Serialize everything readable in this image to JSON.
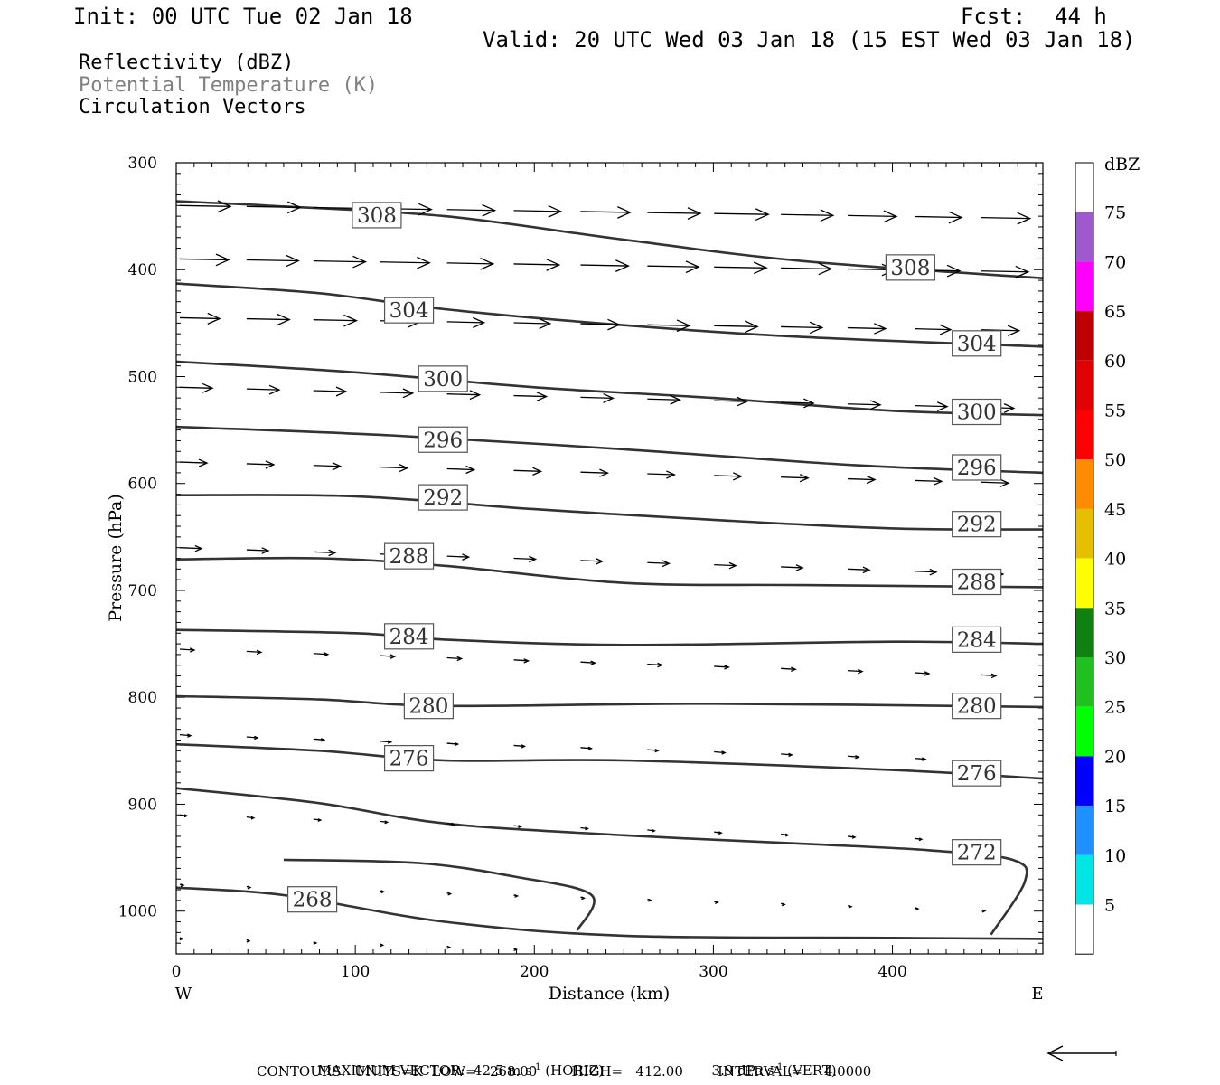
{
  "header": {
    "init": "Init: 00 UTC Tue 02 Jan 18",
    "fcst_label": "Fcst:",
    "fcst_value": "44 h",
    "valid": "Valid: 20 UTC Wed 03 Jan 18 (15 EST Wed 03 Jan 18)"
  },
  "fields": [
    {
      "text": "Reflectivity (dBZ)",
      "color": "#000000"
    },
    {
      "text": "Potential Temperature (K)",
      "color": "#808080"
    },
    {
      "text": "Circulation Vectors",
      "color": "#000000"
    }
  ],
  "chart_data": {
    "type": "cross-section",
    "xlabel": "Distance (km)",
    "ylabel": "Pressure (hPa)",
    "xlim": [
      0,
      484
    ],
    "ylim": [
      1040,
      300
    ],
    "x_ticks": [
      0,
      100,
      200,
      300,
      400
    ],
    "y_ticks": [
      300,
      400,
      500,
      600,
      700,
      800,
      900,
      1000
    ],
    "x_end_labels": {
      "left": "W",
      "right": "E"
    },
    "theta_contours": [
      {
        "level": 308,
        "label": "308",
        "points": [
          [
            0,
            336
          ],
          [
            50,
            340
          ],
          [
            150,
            350
          ],
          [
            250,
            372
          ],
          [
            350,
            392
          ],
          [
            484,
            408
          ]
        ],
        "labels_at": [
          [
            112,
            349
          ],
          [
            410,
            398
          ]
        ]
      },
      {
        "level": 304,
        "label": "304",
        "points": [
          [
            0,
            413
          ],
          [
            80,
            422
          ],
          [
            150,
            437
          ],
          [
            250,
            452
          ],
          [
            350,
            463
          ],
          [
            484,
            472
          ]
        ],
        "labels_at": [
          [
            130,
            438
          ],
          [
            447,
            469
          ]
        ]
      },
      {
        "level": 300,
        "label": "300",
        "points": [
          [
            0,
            486
          ],
          [
            100,
            496
          ],
          [
            200,
            510
          ],
          [
            300,
            520
          ],
          [
            400,
            532
          ],
          [
            484,
            536
          ]
        ],
        "labels_at": [
          [
            149,
            502
          ],
          [
            447,
            533
          ]
        ]
      },
      {
        "level": 296,
        "label": "296",
        "points": [
          [
            0,
            547
          ],
          [
            120,
            555
          ],
          [
            250,
            568
          ],
          [
            380,
            583
          ],
          [
            484,
            590
          ]
        ],
        "labels_at": [
          [
            149,
            559
          ],
          [
            447,
            585
          ]
        ]
      },
      {
        "level": 292,
        "label": "292",
        "points": [
          [
            0,
            611
          ],
          [
            100,
            612
          ],
          [
            200,
            624
          ],
          [
            300,
            634
          ],
          [
            400,
            642
          ],
          [
            484,
            643
          ]
        ],
        "labels_at": [
          [
            149,
            613
          ],
          [
            447,
            638
          ]
        ]
      },
      {
        "level": 288,
        "label": "288",
        "points": [
          [
            0,
            671
          ],
          [
            80,
            670
          ],
          [
            150,
            677
          ],
          [
            250,
            693
          ],
          [
            350,
            695
          ],
          [
            484,
            697
          ]
        ],
        "labels_at": [
          [
            130,
            668
          ],
          [
            447,
            692
          ]
        ]
      },
      {
        "level": 284,
        "label": "284",
        "points": [
          [
            0,
            737
          ],
          [
            100,
            740
          ],
          [
            150,
            746
          ],
          [
            250,
            751
          ],
          [
            400,
            748
          ],
          [
            484,
            750
          ]
        ],
        "labels_at": [
          [
            130,
            743
          ],
          [
            447,
            746
          ]
        ]
      },
      {
        "level": 280,
        "label": "280",
        "points": [
          [
            0,
            799
          ],
          [
            80,
            802
          ],
          [
            150,
            808
          ],
          [
            300,
            806
          ],
          [
            484,
            809
          ]
        ],
        "labels_at": [
          [
            141,
            808
          ],
          [
            447,
            808
          ]
        ]
      },
      {
        "level": 276,
        "label": "276",
        "points": [
          [
            0,
            844
          ],
          [
            80,
            850
          ],
          [
            150,
            859
          ],
          [
            250,
            859
          ],
          [
            400,
            868
          ],
          [
            484,
            876
          ]
        ],
        "labels_at": [
          [
            130,
            857
          ],
          [
            447,
            871
          ]
        ]
      },
      {
        "level": 272,
        "label": "272",
        "points": [
          [
            0,
            885
          ],
          [
            80,
            899
          ],
          [
            150,
            918
          ],
          [
            250,
            929
          ],
          [
            350,
            937
          ],
          [
            420,
            943
          ],
          [
            467,
            952
          ],
          [
            474,
            972
          ],
          [
            455,
            1022
          ]
        ],
        "labels_at": [
          [
            447,
            945
          ]
        ]
      },
      {
        "level": 268,
        "label": "268",
        "points": [
          [
            0,
            978
          ],
          [
            60,
            985
          ],
          [
            150,
            1010
          ],
          [
            250,
            1023
          ],
          [
            400,
            1025
          ],
          [
            484,
            1026
          ]
        ],
        "labels_at": [
          [
            76,
            989
          ]
        ]
      },
      {
        "level": 268,
        "label": "",
        "points": [
          [
            60,
            952
          ],
          [
            135,
            955
          ],
          [
            190,
            968
          ],
          [
            232,
            985
          ],
          [
            224,
            1018
          ]
        ]
      }
    ],
    "vectors_note": "circulation vectors pointing east, decreasing in length toward the surface",
    "colorbar": {
      "title": "dBZ",
      "labels": [
        "75",
        "70",
        "65",
        "60",
        "55",
        "50",
        "45",
        "40",
        "35",
        "30",
        "25",
        "20",
        "15",
        "10",
        "5"
      ],
      "colors": [
        "#ffffff",
        "#9e59cc",
        "#ff00ff",
        "#c00000",
        "#e00000",
        "#ff0000",
        "#ff8c00",
        "#e6c000",
        "#ffff00",
        "#108010",
        "#20c020",
        "#00ff00",
        "#0000ff",
        "#1e90ff",
        "#00e5e5",
        "#ffffff"
      ]
    }
  },
  "footer": {
    "line1_a": "MAXIMUM VECTOR:  42.5 m s",
    "line1_a_sup": "-1",
    "line1_b": " (HORIZ)",
    "line1_c": "3.9 dPa s",
    "line1_c_sup": "-1",
    "line1_d": " (VERT)",
    "line2": "CONTOURS:  UNITS=K  LOW=   268.00        HIGH=   412.00        INTERVAL=     4.0000"
  }
}
